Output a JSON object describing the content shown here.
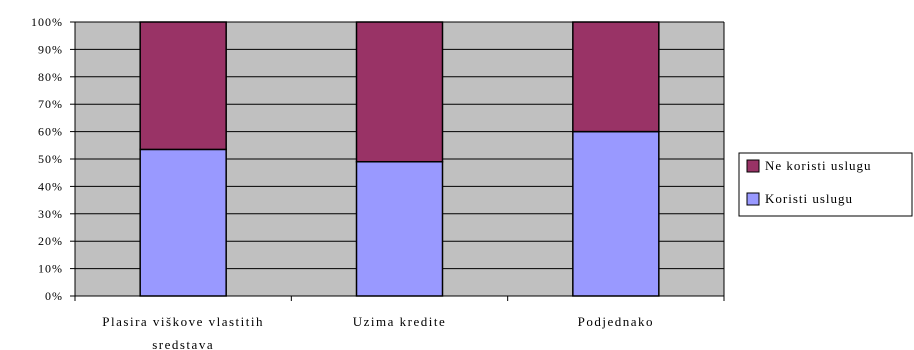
{
  "chart_data": {
    "type": "bar",
    "stacked": true,
    "percent_stacked": true,
    "categories": [
      [
        "Plasira viškove vlastitih",
        "sredstava"
      ],
      [
        "Uzima kredite"
      ],
      [
        "Podjednako"
      ]
    ],
    "series": [
      {
        "name": "Koristi uslugu",
        "values": [
          53.5,
          49,
          60
        ],
        "color": "#9999ff"
      },
      {
        "name": "Ne koristi uslugu",
        "values": [
          46.5,
          51,
          40
        ],
        "color": "#993366"
      }
    ],
    "y_ticks": [
      "0%",
      "10%",
      "20%",
      "30%",
      "40%",
      "50%",
      "60%",
      "70%",
      "80%",
      "90%",
      "100%"
    ],
    "ylim": [
      0,
      100
    ],
    "grid": true,
    "plot_background": "#c0c0c0",
    "legend_position": "right",
    "legend_order": [
      "Ne koristi uslugu",
      "Koristi uslugu"
    ]
  }
}
